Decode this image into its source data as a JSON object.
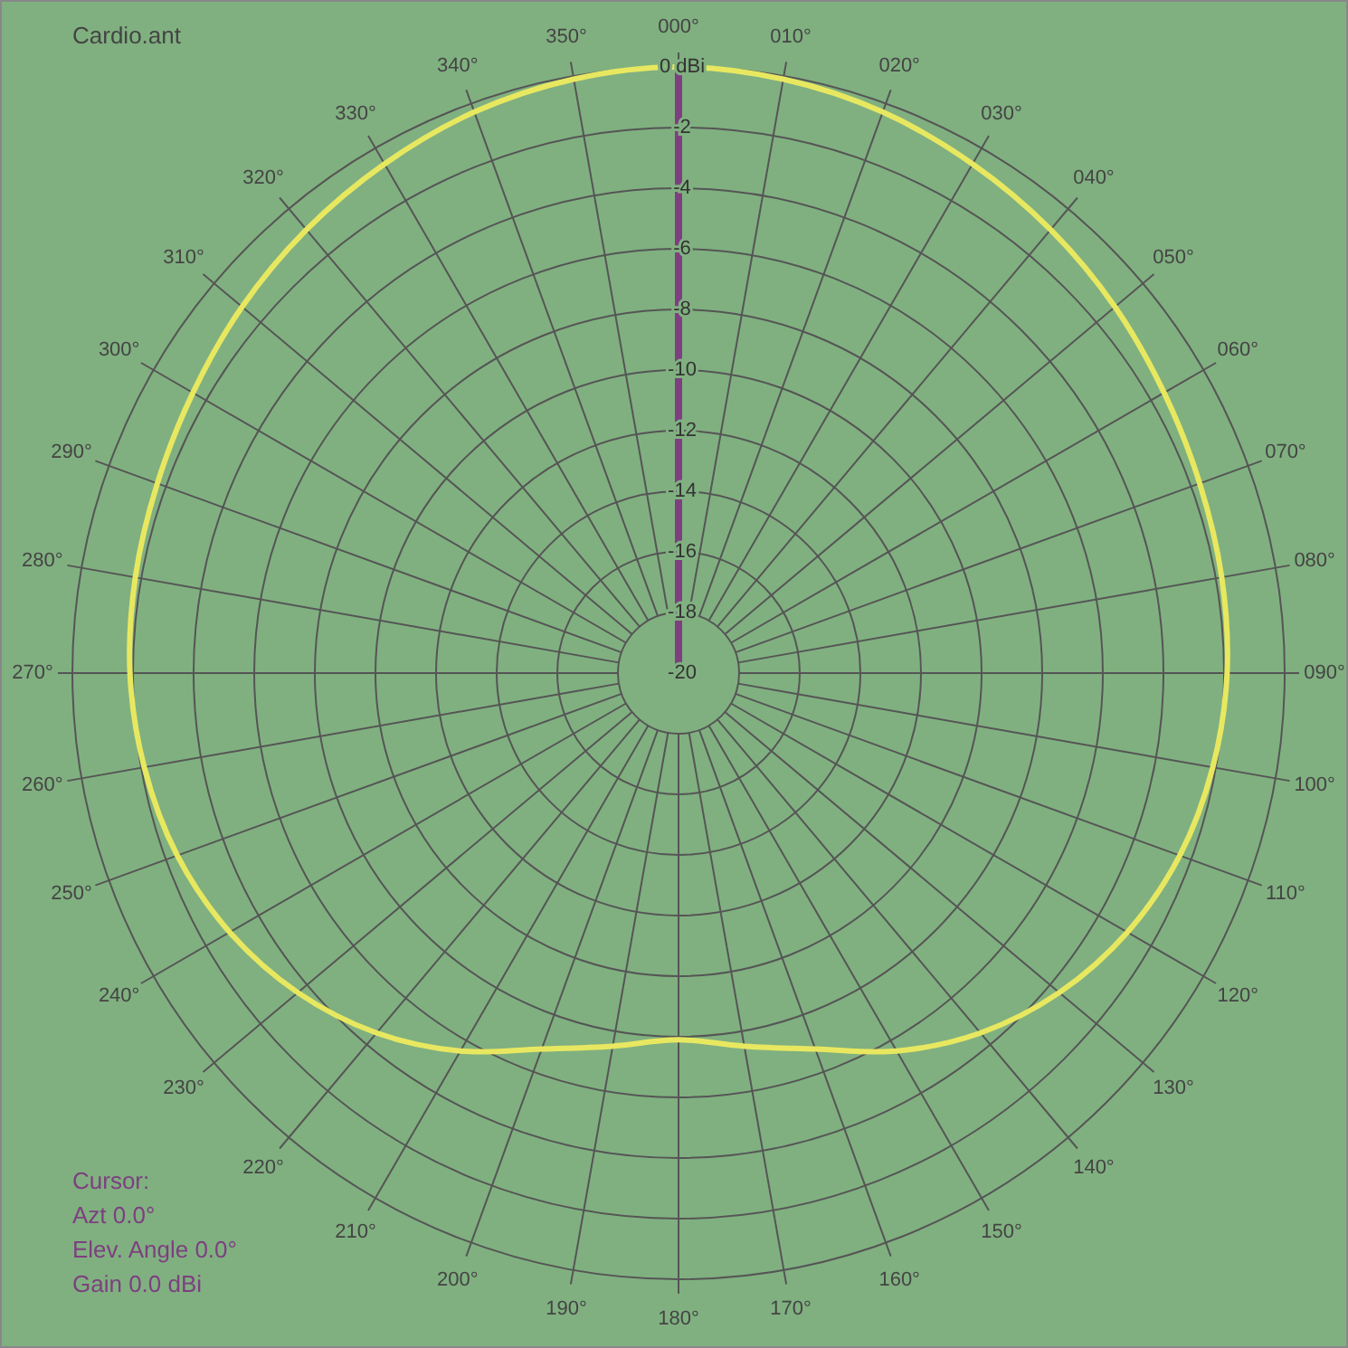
{
  "chart_data": {
    "type": "radar",
    "title": "Cardio.ant",
    "categories": [
      "000°",
      "010°",
      "020°",
      "030°",
      "040°",
      "050°",
      "060°",
      "070°",
      "080°",
      "090°",
      "100°",
      "110°",
      "120°",
      "130°",
      "140°",
      "150°",
      "160°",
      "170°",
      "180°",
      "190°",
      "200°",
      "210°",
      "220°",
      "230°",
      "240°",
      "250°",
      "260°",
      "270°",
      "280°",
      "290°",
      "300°",
      "310°",
      "320°",
      "330°",
      "340°",
      "350°"
    ],
    "series": [
      {
        "color": "#e8e860",
        "values": [
          0,
          -0.1,
          -0.3,
          -0.6,
          -0.9,
          -1.2,
          -1.5,
          -1.7,
          -1.8,
          -1.9,
          -2.1,
          -2.4,
          -2.9,
          -3.6,
          -4.5,
          -5.6,
          -6.8,
          -7.5,
          -7.9,
          -7.5,
          -6.8,
          -5.6,
          -4.5,
          -3.6,
          -2.9,
          -2.4,
          -2.1,
          -1.9,
          -1.8,
          -1.7,
          -1.5,
          -1.2,
          -0.9,
          -0.6,
          -0.3,
          -0.1
        ]
      }
    ],
    "ylim": [
      -20,
      0
    ],
    "yticks": [
      {
        "value": 0,
        "label": "0 dBi"
      },
      {
        "value": -2,
        "label": "-2"
      },
      {
        "value": -4,
        "label": "-4"
      },
      {
        "value": -6,
        "label": "-6"
      },
      {
        "value": -8,
        "label": "-8"
      },
      {
        "value": -10,
        "label": "-10"
      },
      {
        "value": -12,
        "label": "-12"
      },
      {
        "value": -14,
        "label": "-14"
      },
      {
        "value": -16,
        "label": "-16"
      },
      {
        "value": -18,
        "label": "-18"
      },
      {
        "value": -20,
        "label": "-20"
      }
    ],
    "grid": true,
    "marker": "none",
    "line_style": "solid",
    "annotations": [
      "Cursor:",
      "Azt 0.0°",
      "Elev. Angle 0.0°",
      "Gain 0.0 dBi"
    ]
  }
}
